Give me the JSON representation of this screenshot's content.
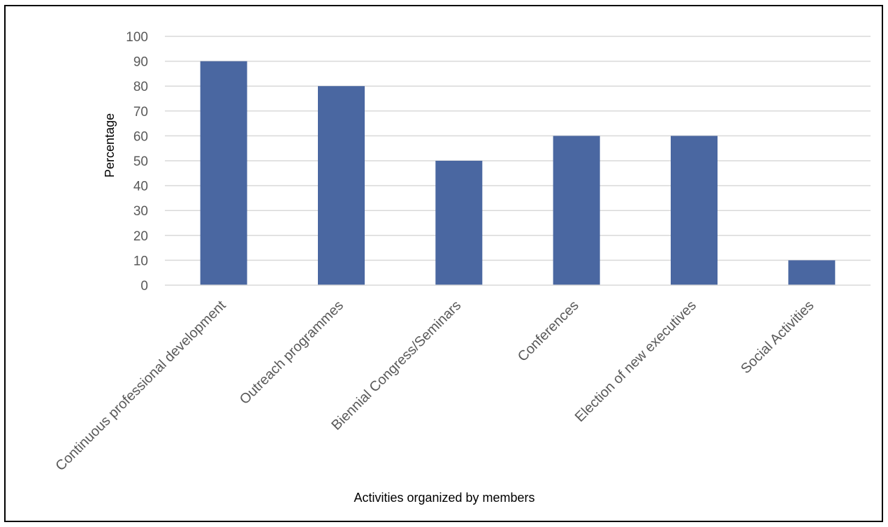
{
  "chart_data": {
    "type": "bar",
    "title": "",
    "xlabel": "Activities organized by members",
    "ylabel": "Percentage",
    "categories": [
      "Continuous professional development",
      "Outreach programmes",
      "Biennial Congress/Seminars",
      "Conferences",
      "Election of new executives",
      "Social Activities"
    ],
    "values": [
      90,
      80,
      50,
      60,
      60,
      10
    ],
    "ylim": [
      0,
      100
    ],
    "yticks": [
      0,
      10,
      20,
      30,
      40,
      50,
      60,
      70,
      80,
      90,
      100
    ],
    "grid": true,
    "legend": "none",
    "bar_color": "#4a67a1",
    "grid_color": "#d9d9d9"
  }
}
